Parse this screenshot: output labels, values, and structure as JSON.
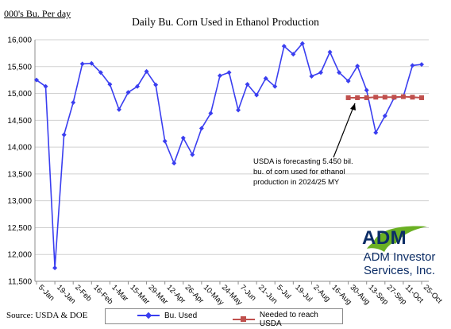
{
  "header": {
    "unit_label": "000's Bu. Per day",
    "title": "Daily Bu. Corn Used in Ethanol Production"
  },
  "footer": {
    "source": "Source: USDA & DOE"
  },
  "annotation": {
    "text": "USDA is forecasting 5.450 bil. bu. of corn used for ethanol production in 2024/25 MY"
  },
  "branding": {
    "logo_text": "ADM",
    "company_line1": "ADM Investor",
    "company_line2": "Services, Inc."
  },
  "colors": {
    "bu_used": "#3a3ef0",
    "needed": "#c0504d",
    "arrow": "#000000",
    "logo_green": "#6ab023",
    "logo_blue": "#0c2d66"
  },
  "chart_data": {
    "type": "line",
    "title": "Daily Bu. Corn Used in Ethanol Production",
    "ylabel": "000's Bu. Per day",
    "ylim": [
      11500,
      16000
    ],
    "yticks": [
      "11,500",
      "12,000",
      "12,500",
      "13,000",
      "13,500",
      "14,000",
      "14,500",
      "15,000",
      "15,500",
      "16,000"
    ],
    "yticks_values": [
      11500,
      12000,
      12500,
      13000,
      13500,
      14000,
      14500,
      15000,
      15500,
      16000
    ],
    "x_tick_labels": [
      "5-Jan",
      "19-Jan",
      "2-Feb",
      "16-Feb",
      "1-Mar",
      "15-Mar",
      "29-Mar",
      "12-Apr",
      "26-Apr",
      "10-May",
      "24-May",
      "7-Jun",
      "21-Jun",
      "5-Jul",
      "19-Jul",
      "2-Aug",
      "16-Aug",
      "30-Aug",
      "13-Sep",
      "27-Sep",
      "11-Oct",
      "25-Oct"
    ],
    "grid": true,
    "legend_position": "bottom",
    "series": [
      {
        "name": "Bu. Used",
        "values": [
          15250,
          15130,
          11750,
          14230,
          14830,
          15550,
          15560,
          15390,
          15170,
          14700,
          15020,
          15130,
          15410,
          15160,
          14110,
          13700,
          14170,
          13860,
          14350,
          14630,
          15330,
          15390,
          14690,
          15170,
          14970,
          15280,
          15130,
          15880,
          15730,
          15930,
          15320,
          15390,
          15770,
          15390,
          15230,
          15510,
          15060,
          14270,
          14580,
          14920,
          14940,
          15520,
          15540
        ]
      },
      {
        "name": "Needed to reach USDA",
        "start_index": 34,
        "values": [
          14920,
          14920,
          14920,
          14930,
          14930,
          14930,
          14940,
          14930,
          14920
        ]
      }
    ]
  },
  "legend": {
    "bu_used": "Bu. Used",
    "needed": "Needed to reach USDA"
  }
}
